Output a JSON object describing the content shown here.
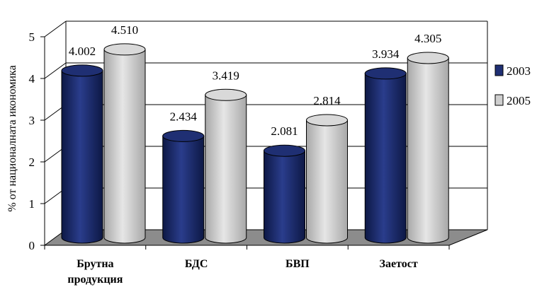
{
  "chart_data": {
    "type": "bar",
    "ylabel": "% от националната икономика",
    "xlabel": "",
    "ylim": [
      0,
      5
    ],
    "yticks": [
      "0",
      "1",
      "2",
      "3",
      "4",
      "5"
    ],
    "categories": [
      [
        "Брутна",
        "продукция"
      ],
      [
        "БДС"
      ],
      [
        "БВП"
      ],
      [
        "Заетост"
      ]
    ],
    "series": [
      {
        "name": "2003",
        "values": [
          4.002,
          2.434,
          2.081,
          3.934
        ],
        "labels": [
          "4.002",
          "2.434",
          "2.081",
          "3.934"
        ],
        "color": "#1f2f73"
      },
      {
        "name": "2005",
        "values": [
          4.51,
          3.419,
          2.814,
          4.305
        ],
        "labels": [
          "4.510",
          "3.419",
          "2.814",
          "4.305"
        ],
        "color": "#cfcfcf"
      }
    ],
    "legend_position": "right",
    "grid": true,
    "style": "3d-cylinder"
  }
}
